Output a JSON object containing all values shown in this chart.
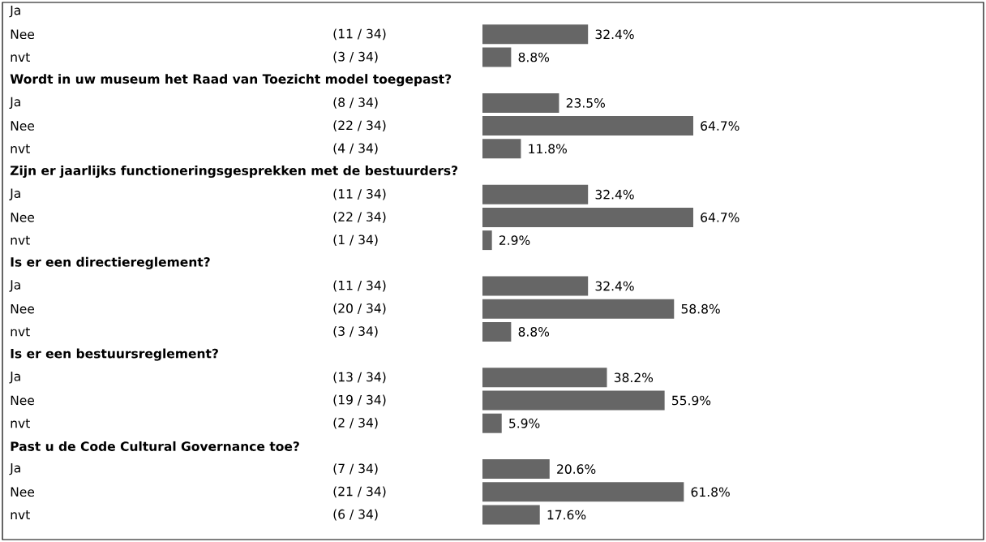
{
  "chart_data": {
    "type": "bar",
    "orientation": "horizontal",
    "color": "#666666",
    "categories": [
      "Ja",
      "Nee",
      "nvt",
      "**Wordt in uw museum het Raad van Toezicht model toegepast?**",
      "Ja",
      "Nee",
      "nvt",
      "**Zijn er jaarlijks functioneringsgesprekken met de bestuurders?**",
      "Ja",
      "Nee",
      "nvt",
      "**Is er een directiereglement?**",
      "Ja",
      "Nee",
      "nvt",
      "**Is er een bestuursreglement?**",
      "Ja",
      "Nee",
      "nvt",
      "**Past u de Code Cultural Governance toe?**",
      "Ja",
      "Nee",
      "nvt"
    ],
    "values": [
      null,
      32.4,
      8.8,
      null,
      23.5,
      64.7,
      11.8,
      null,
      32.4,
      64.7,
      2.9,
      null,
      32.4,
      58.8,
      8.8,
      null,
      38.2,
      55.9,
      5.9,
      null,
      20.6,
      61.8,
      17.6
    ],
    "value_labels": [
      null,
      "32.4%",
      "8.8%",
      null,
      "23.5%",
      "64.7%",
      "11.8%",
      null,
      "32.4%",
      "64.7%",
      "2.9%",
      null,
      "32.4%",
      "58.8%",
      "8.8%",
      null,
      "38.2%",
      "55.9%",
      "5.9%",
      null,
      "20.6%",
      "61.8%",
      "17.6%"
    ],
    "annotations": [
      "(11 / 34)",
      "(3 / 34)",
      "(8 / 34)",
      "(22 / 34)",
      "(4 / 34)",
      "(11 / 34)",
      "(22 / 34)",
      "(1 / 34)",
      "(11 / 34)",
      "(20 / 34)",
      "(3 / 34)",
      "(13 / 34)",
      "(19 / 34)",
      "(2 / 34)",
      "(7 / 34)",
      "(21 / 34)",
      "(6 / 34)"
    ]
  }
}
